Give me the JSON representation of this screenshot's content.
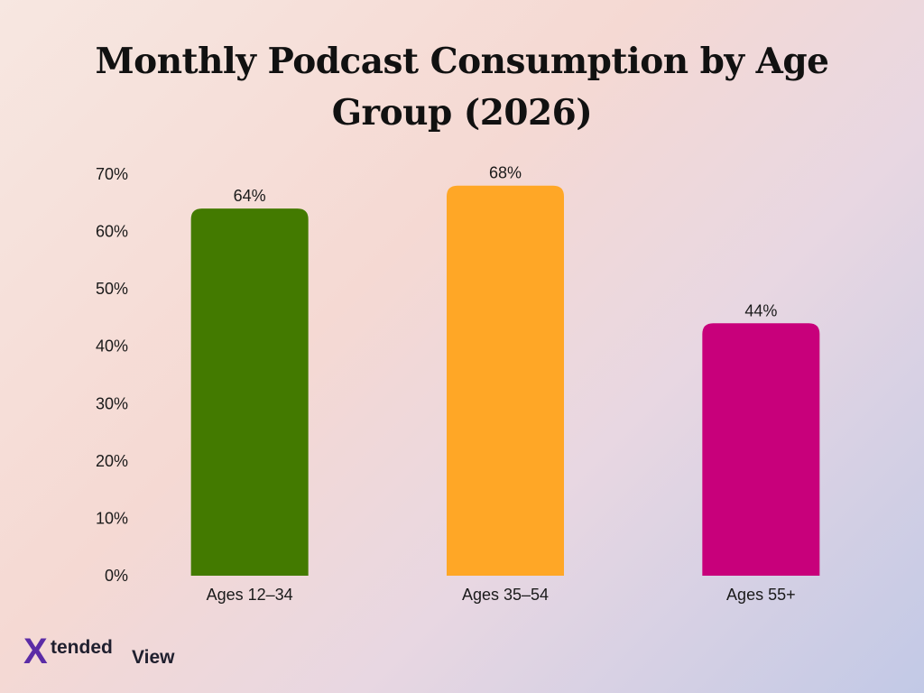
{
  "chart_data": {
    "type": "bar",
    "title": "Monthly Podcast Consumption by Age Group (2026)",
    "categories": [
      "Ages 12–34",
      "Ages 35–54",
      "Ages 55+"
    ],
    "values": [
      64,
      68,
      44
    ],
    "value_labels": [
      "64%",
      "68%",
      "44%"
    ],
    "colors": [
      "#437a00",
      "#ffa726",
      "#c8007b"
    ],
    "ylim": [
      0,
      70
    ],
    "yticks": [
      0,
      10,
      20,
      30,
      40,
      50,
      60,
      70
    ],
    "ytick_labels": [
      "0%",
      "10%",
      "20%",
      "30%",
      "40%",
      "50%",
      "60%",
      "70%"
    ],
    "xlabel": "",
    "ylabel": "",
    "grid": false,
    "legend": "none"
  },
  "branding": {
    "logo_x": "X",
    "logo_tended": "tended",
    "logo_view": "View",
    "logo_color": "#5b2ca6"
  }
}
